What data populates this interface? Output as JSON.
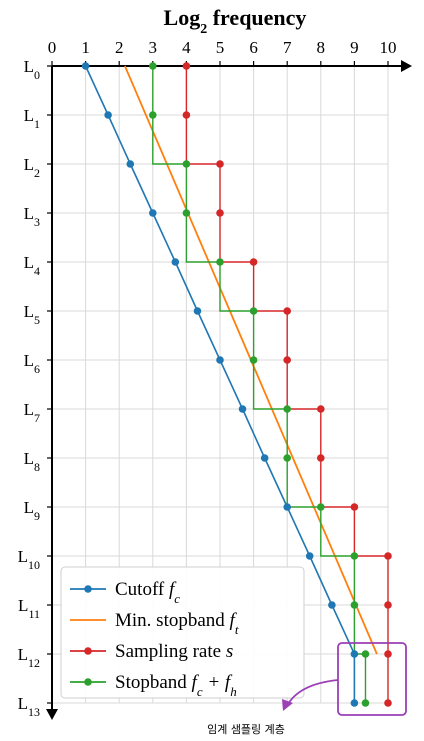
{
  "chart_data": {
    "type": "line",
    "title": "Log",
    "title_sub": "2",
    "title_suffix": " frequency",
    "x_ticks": [
      "0",
      "1",
      "2",
      "3",
      "4",
      "5",
      "6",
      "7",
      "8",
      "9",
      "10"
    ],
    "y_levels": [
      {
        "main": "L",
        "sub": "0"
      },
      {
        "main": "L",
        "sub": "1"
      },
      {
        "main": "L",
        "sub": "2"
      },
      {
        "main": "L",
        "sub": "3"
      },
      {
        "main": "L",
        "sub": "4"
      },
      {
        "main": "L",
        "sub": "5"
      },
      {
        "main": "L",
        "sub": "6"
      },
      {
        "main": "L",
        "sub": "7"
      },
      {
        "main": "L",
        "sub": "8"
      },
      {
        "main": "L",
        "sub": "9"
      },
      {
        "main": "L",
        "sub": "10"
      },
      {
        "main": "L",
        "sub": "11"
      },
      {
        "main": "L",
        "sub": "12"
      },
      {
        "main": "L",
        "sub": "13"
      }
    ],
    "xlim": [
      0,
      10
    ],
    "ylim": [
      0,
      13
    ],
    "y_inverted": true,
    "grid": true,
    "legend_position": "bottom-left",
    "series": [
      {
        "key": "cutoff",
        "name": "Cutoff",
        "formula": "f",
        "formula_sub": "c",
        "color": "#1f77b4",
        "style": "line-markers",
        "points": [
          [
            1,
            0
          ],
          [
            1.67,
            1
          ],
          [
            2.33,
            2
          ],
          [
            3,
            3
          ],
          [
            3.67,
            4
          ],
          [
            4.33,
            5
          ],
          [
            5,
            6
          ],
          [
            5.67,
            7
          ],
          [
            6.33,
            8
          ],
          [
            7,
            9
          ],
          [
            7.67,
            10
          ],
          [
            8.33,
            11
          ],
          [
            9,
            12
          ],
          [
            9,
            13
          ]
        ]
      },
      {
        "key": "min_stopband",
        "name": "Min. stopband",
        "formula": "f",
        "formula_sub": "t",
        "color": "#ff7f0e",
        "style": "line",
        "points": [
          [
            2.17,
            0
          ],
          [
            9.67,
            12
          ]
        ]
      },
      {
        "key": "sampling_rate",
        "name": "Sampling rate",
        "formula": "s",
        "formula_sub": "",
        "color": "#d62728",
        "style": "step-markers",
        "points": [
          [
            4,
            0
          ],
          [
            4,
            1
          ],
          [
            5,
            2
          ],
          [
            5,
            3
          ],
          [
            6,
            4
          ],
          [
            7,
            5
          ],
          [
            7,
            6
          ],
          [
            8,
            7
          ],
          [
            8,
            8
          ],
          [
            9,
            9
          ],
          [
            10,
            10
          ],
          [
            10,
            11
          ],
          [
            10,
            12
          ],
          [
            10,
            13
          ]
        ],
        "step_x": [
          4,
          4,
          5,
          5,
          6,
          7,
          7,
          8,
          8,
          9,
          10,
          10,
          10,
          10
        ]
      },
      {
        "key": "stopband",
        "name": "Stopband",
        "formula": "f",
        "formula_sub": "c",
        "formula_tail": " + f",
        "formula_tail_sub": "h",
        "color": "#2ca02c",
        "style": "step-markers",
        "points": [
          [
            3,
            0
          ],
          [
            3,
            1
          ],
          [
            4,
            2
          ],
          [
            4,
            3
          ],
          [
            5,
            4
          ],
          [
            6,
            5
          ],
          [
            6,
            6
          ],
          [
            7,
            7
          ],
          [
            7,
            8
          ],
          [
            8,
            9
          ],
          [
            9,
            10
          ],
          [
            9,
            11
          ],
          [
            9.33,
            12
          ],
          [
            9.33,
            13
          ]
        ],
        "step_x": [
          3,
          3,
          4,
          4,
          5,
          6,
          6,
          7,
          7,
          8,
          9,
          9,
          9.33,
          9.33
        ]
      }
    ],
    "annotation": {
      "text": "임계 샘플링 계층",
      "highlight_color": "#9b3fb5",
      "levels": [
        12,
        13
      ]
    }
  }
}
